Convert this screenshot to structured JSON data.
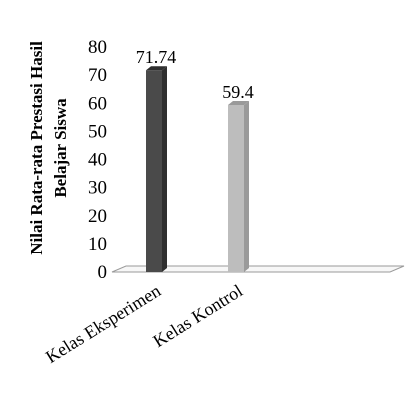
{
  "chart_data": {
    "type": "bar",
    "categories": [
      "Kelas Eksperimen",
      "Kelas Kontrol"
    ],
    "values": [
      71.74,
      59.4
    ],
    "data_labels": [
      "71.74",
      "59.4"
    ],
    "ylabel_lines": [
      "Nilai Rata-rata Prestasi Hasil",
      "Belajar Siswa"
    ],
    "yticks": [
      0,
      10,
      20,
      30,
      40,
      50,
      60,
      70,
      80
    ],
    "ylim": [
      0,
      80
    ],
    "grid": false,
    "legend": "none",
    "bar_colors": [
      "#4a4a4a",
      "#bdbdbd"
    ],
    "bar_top_colors": [
      "#2f2f2f",
      "#9a9a9a"
    ]
  }
}
